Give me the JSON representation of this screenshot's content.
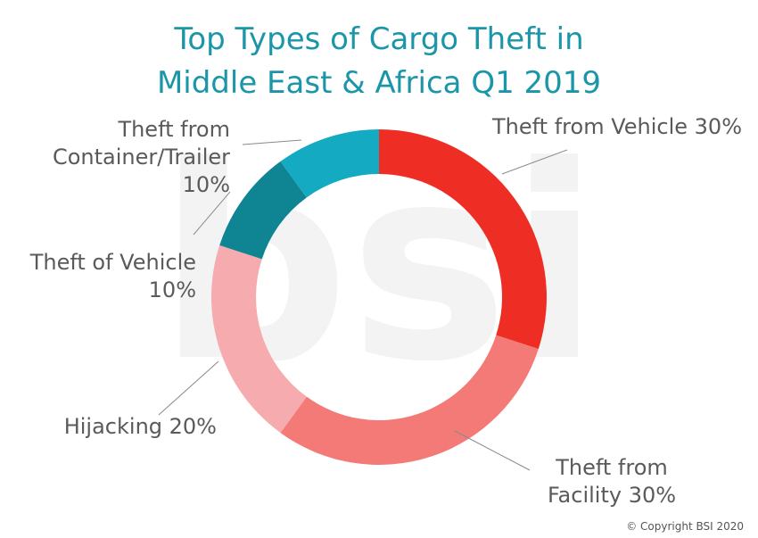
{
  "chart_data": {
    "type": "pie",
    "donut": true,
    "title_lines": [
      "Top Types of  Cargo Theft in",
      "Middle East & Africa Q1 2019"
    ],
    "slices": [
      {
        "label_lines": [
          "Theft from Vehicle 30%"
        ],
        "value": 30,
        "color": "#ee2d24"
      },
      {
        "label_lines": [
          "Theft from",
          "Facility 30%"
        ],
        "value": 30,
        "color": "#f37a77"
      },
      {
        "label_lines": [
          "Hijacking 20%"
        ],
        "value": 20,
        "color": "#f6abae"
      },
      {
        "label_lines": [
          "Theft of Vehicle",
          "10%"
        ],
        "value": 10,
        "color": "#0f8594"
      },
      {
        "label_lines": [
          "Theft from",
          "Container/Trailer",
          "10%"
        ],
        "value": 10,
        "color": "#14abc2"
      }
    ]
  },
  "watermark": "bsi",
  "copyright": "© Copyright BSI 2020"
}
